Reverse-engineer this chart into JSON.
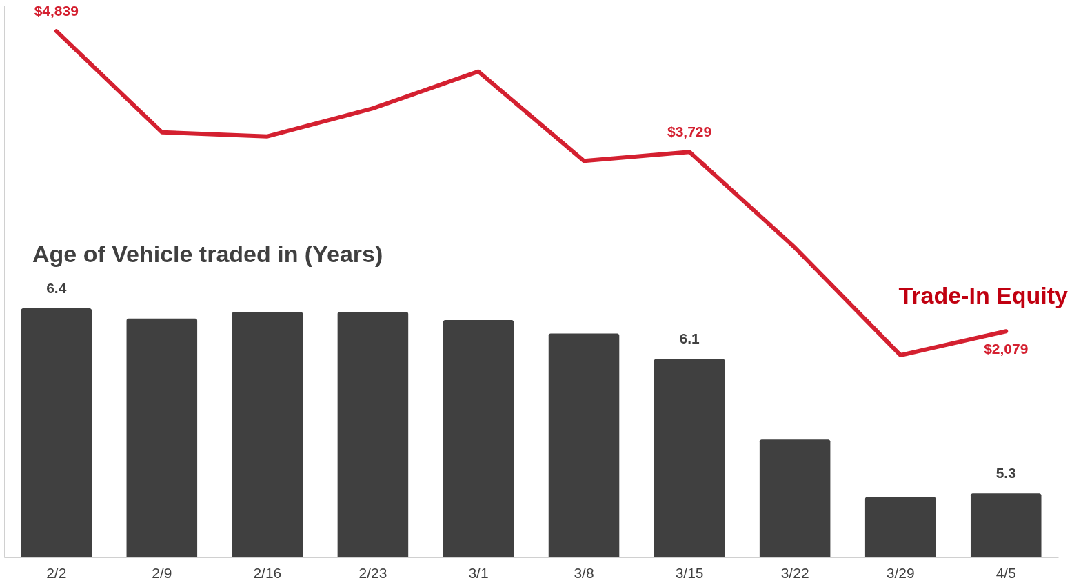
{
  "chart_data": {
    "type": "bar",
    "categories": [
      "2/2",
      "2/9",
      "2/16",
      "2/23",
      "3/1",
      "3/8",
      "3/15",
      "3/22",
      "3/29",
      "4/5"
    ],
    "series": [
      {
        "name": "Age of Vehicle traded in (Years)",
        "color": "#404040",
        "values": [
          6.4,
          6.34,
          6.38,
          6.38,
          6.33,
          6.25,
          6.1,
          5.62,
          5.28,
          5.3
        ],
        "value_labels": [
          "6.4",
          null,
          null,
          null,
          null,
          null,
          "6.1",
          null,
          null,
          "5.3"
        ]
      },
      {
        "name": "Trade-In Equity",
        "type": "line",
        "axis": "y2",
        "color": "#d42030",
        "values": [
          4839,
          3910,
          3872,
          4129,
          4468,
          3646,
          3729,
          2848,
          1859,
          2079
        ],
        "value_labels": [
          "$4,839",
          null,
          null,
          null,
          null,
          null,
          "$3,729",
          null,
          null,
          "$2,079"
        ]
      }
    ],
    "ylim": [
      4.92,
      8.2
    ],
    "y2lim": [
      0,
      5075
    ],
    "tick_labels": "x"
  }
}
